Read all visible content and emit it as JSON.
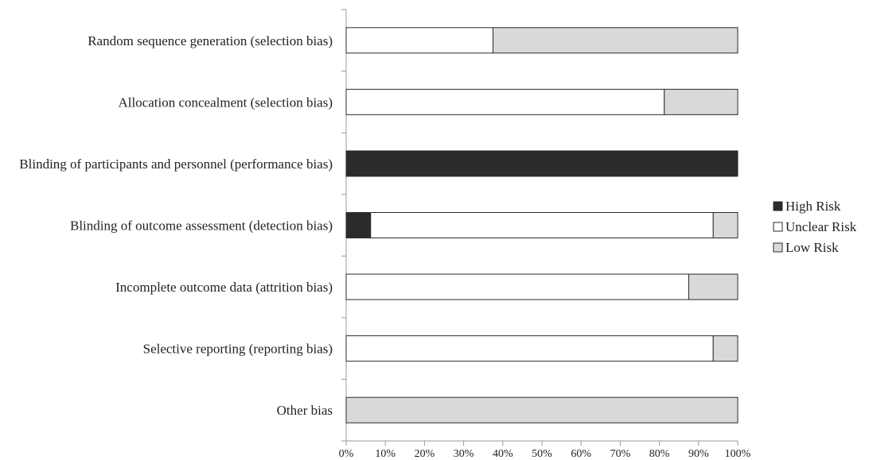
{
  "chart_data": {
    "type": "bar",
    "orientation": "horizontal",
    "stacked": true,
    "categories": [
      "Random sequence generation (selection bias)",
      "Allocation concealment (selection bias)",
      "Blinding of participants and personnel (performance bias)",
      "Blinding of outcome assessment (detection bias)",
      "Incomplete outcome data (attrition bias)",
      "Selective reporting (reporting bias)",
      "Other bias"
    ],
    "series": [
      {
        "name": "High Risk",
        "color": "#2b2b2b",
        "values": [
          0,
          0,
          100,
          6.25,
          0,
          0,
          0
        ]
      },
      {
        "name": "Unclear Risk",
        "color": "#ffffff",
        "values": [
          37.5,
          81.25,
          0,
          87.5,
          87.5,
          93.75,
          0
        ]
      },
      {
        "name": "Low Risk",
        "color": "#d9d9d9",
        "values": [
          62.5,
          18.75,
          0,
          6.25,
          12.5,
          6.25,
          100
        ]
      }
    ],
    "xlim": [
      0,
      100
    ],
    "x_ticks": [
      "0%",
      "10%",
      "20%",
      "30%",
      "40%",
      "50%",
      "60%",
      "70%",
      "80%",
      "90%",
      "100%"
    ],
    "grid": false,
    "legend": {
      "position": "right"
    },
    "title": "",
    "xlabel": "",
    "ylabel": ""
  }
}
